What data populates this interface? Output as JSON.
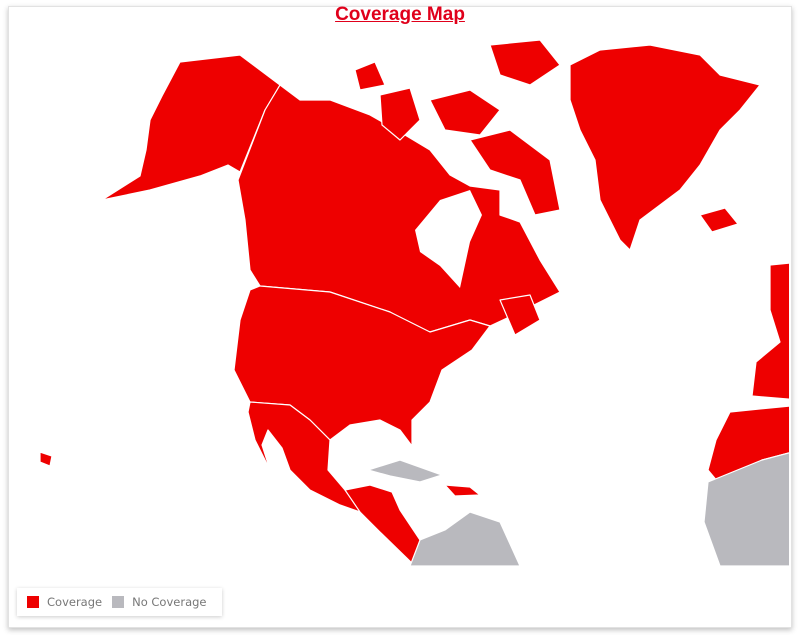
{
  "title": "Coverage Map",
  "colors": {
    "coverage": "#ee0000",
    "no_coverage": "#b9b9be",
    "border": "#ffffff"
  },
  "legend": [
    {
      "label": "Coverage",
      "color": "#ee0000"
    },
    {
      "label": "No Coverage",
      "color": "#b9b9be"
    }
  ]
}
